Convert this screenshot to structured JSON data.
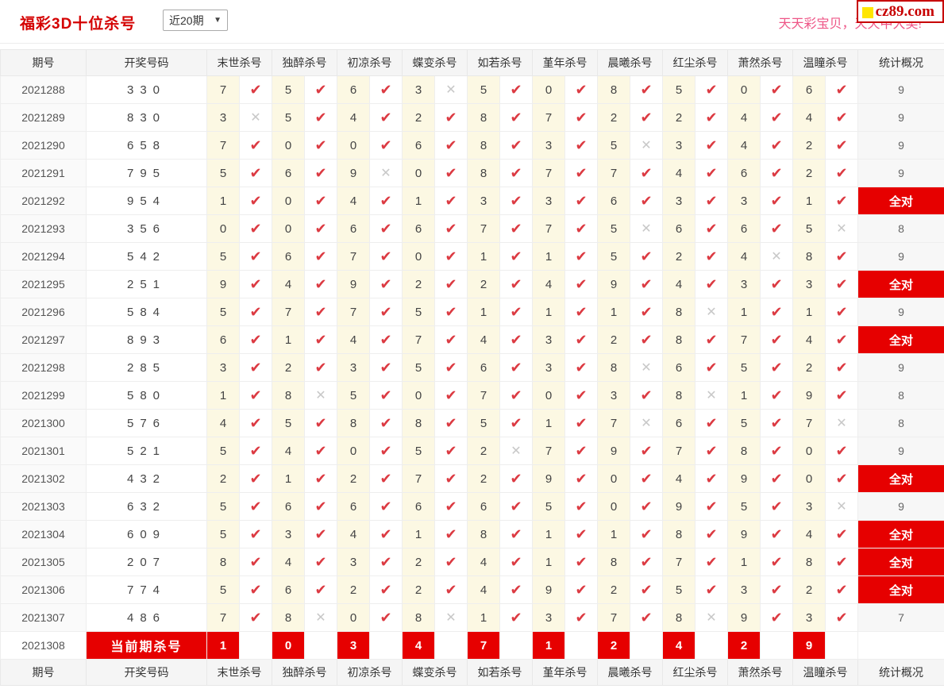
{
  "page": {
    "title": "福彩3D十位杀号",
    "period_select": {
      "value": "近20期",
      "arrow": "▼"
    },
    "slogan": "天天彩宝贝，天天中大奖!",
    "logo_text": "cz89.com"
  },
  "colors": {
    "title_red": "#d40000",
    "accent_red": "#e60000",
    "check_red": "#dc3a42",
    "cross_gray": "#c8c8c8",
    "slogan_pink": "#ee5586",
    "logo_red": "#c70000",
    "logo_yellow": "#ffe600",
    "kill_cell_yellow": "#fcf8e3"
  },
  "table": {
    "headers": {
      "period": "期号",
      "draw": "开奖号码",
      "killers": [
        "末世杀号",
        "独醉杀号",
        "初凉杀号",
        "蝶变杀号",
        "如若杀号",
        "堇年杀号",
        "晨曦杀号",
        "红尘杀号",
        "萧然杀号",
        "温瞳杀号"
      ],
      "stats": "统计概况"
    },
    "all_correct_label": "全对",
    "rows": [
      {
        "period": "2021288",
        "draw": "330",
        "kills": [
          [
            "7",
            1
          ],
          [
            "5",
            1
          ],
          [
            "6",
            1
          ],
          [
            "3",
            0
          ],
          [
            "5",
            1
          ],
          [
            "0",
            1
          ],
          [
            "8",
            1
          ],
          [
            "5",
            1
          ],
          [
            "0",
            1
          ],
          [
            "6",
            1
          ]
        ],
        "stat": "9"
      },
      {
        "period": "2021289",
        "draw": "830",
        "kills": [
          [
            "3",
            0
          ],
          [
            "5",
            1
          ],
          [
            "4",
            1
          ],
          [
            "2",
            1
          ],
          [
            "8",
            1
          ],
          [
            "7",
            1
          ],
          [
            "2",
            1
          ],
          [
            "2",
            1
          ],
          [
            "4",
            1
          ],
          [
            "4",
            1
          ]
        ],
        "stat": "9"
      },
      {
        "period": "2021290",
        "draw": "658",
        "kills": [
          [
            "7",
            1
          ],
          [
            "0",
            1
          ],
          [
            "0",
            1
          ],
          [
            "6",
            1
          ],
          [
            "8",
            1
          ],
          [
            "3",
            1
          ],
          [
            "5",
            0
          ],
          [
            "3",
            1
          ],
          [
            "4",
            1
          ],
          [
            "2",
            1
          ]
        ],
        "stat": "9"
      },
      {
        "period": "2021291",
        "draw": "795",
        "kills": [
          [
            "5",
            1
          ],
          [
            "6",
            1
          ],
          [
            "9",
            0
          ],
          [
            "0",
            1
          ],
          [
            "8",
            1
          ],
          [
            "7",
            1
          ],
          [
            "7",
            1
          ],
          [
            "4",
            1
          ],
          [
            "6",
            1
          ],
          [
            "2",
            1
          ]
        ],
        "stat": "9"
      },
      {
        "period": "2021292",
        "draw": "954",
        "kills": [
          [
            "1",
            1
          ],
          [
            "0",
            1
          ],
          [
            "4",
            1
          ],
          [
            "1",
            1
          ],
          [
            "3",
            1
          ],
          [
            "3",
            1
          ],
          [
            "6",
            1
          ],
          [
            "3",
            1
          ],
          [
            "3",
            1
          ],
          [
            "1",
            1
          ]
        ],
        "stat": "全对"
      },
      {
        "period": "2021293",
        "draw": "356",
        "kills": [
          [
            "0",
            1
          ],
          [
            "0",
            1
          ],
          [
            "6",
            1
          ],
          [
            "6",
            1
          ],
          [
            "7",
            1
          ],
          [
            "7",
            1
          ],
          [
            "5",
            0
          ],
          [
            "6",
            1
          ],
          [
            "6",
            1
          ],
          [
            "5",
            0
          ]
        ],
        "stat": "8"
      },
      {
        "period": "2021294",
        "draw": "542",
        "kills": [
          [
            "5",
            1
          ],
          [
            "6",
            1
          ],
          [
            "7",
            1
          ],
          [
            "0",
            1
          ],
          [
            "1",
            1
          ],
          [
            "1",
            1
          ],
          [
            "5",
            1
          ],
          [
            "2",
            1
          ],
          [
            "4",
            0
          ],
          [
            "8",
            1
          ]
        ],
        "stat": "9"
      },
      {
        "period": "2021295",
        "draw": "251",
        "kills": [
          [
            "9",
            1
          ],
          [
            "4",
            1
          ],
          [
            "9",
            1
          ],
          [
            "2",
            1
          ],
          [
            "2",
            1
          ],
          [
            "4",
            1
          ],
          [
            "9",
            1
          ],
          [
            "4",
            1
          ],
          [
            "3",
            1
          ],
          [
            "3",
            1
          ]
        ],
        "stat": "全对"
      },
      {
        "period": "2021296",
        "draw": "584",
        "kills": [
          [
            "5",
            1
          ],
          [
            "7",
            1
          ],
          [
            "7",
            1
          ],
          [
            "5",
            1
          ],
          [
            "1",
            1
          ],
          [
            "1",
            1
          ],
          [
            "1",
            1
          ],
          [
            "8",
            0
          ],
          [
            "1",
            1
          ],
          [
            "1",
            1
          ]
        ],
        "stat": "9"
      },
      {
        "period": "2021297",
        "draw": "893",
        "kills": [
          [
            "6",
            1
          ],
          [
            "1",
            1
          ],
          [
            "4",
            1
          ],
          [
            "7",
            1
          ],
          [
            "4",
            1
          ],
          [
            "3",
            1
          ],
          [
            "2",
            1
          ],
          [
            "8",
            1
          ],
          [
            "7",
            1
          ],
          [
            "4",
            1
          ]
        ],
        "stat": "全对"
      },
      {
        "period": "2021298",
        "draw": "285",
        "kills": [
          [
            "3",
            1
          ],
          [
            "2",
            1
          ],
          [
            "3",
            1
          ],
          [
            "5",
            1
          ],
          [
            "6",
            1
          ],
          [
            "3",
            1
          ],
          [
            "8",
            0
          ],
          [
            "6",
            1
          ],
          [
            "5",
            1
          ],
          [
            "2",
            1
          ]
        ],
        "stat": "9"
      },
      {
        "period": "2021299",
        "draw": "580",
        "kills": [
          [
            "1",
            1
          ],
          [
            "8",
            0
          ],
          [
            "5",
            1
          ],
          [
            "0",
            1
          ],
          [
            "7",
            1
          ],
          [
            "0",
            1
          ],
          [
            "3",
            1
          ],
          [
            "8",
            0
          ],
          [
            "1",
            1
          ],
          [
            "9",
            1
          ]
        ],
        "stat": "8"
      },
      {
        "period": "2021300",
        "draw": "576",
        "kills": [
          [
            "4",
            1
          ],
          [
            "5",
            1
          ],
          [
            "8",
            1
          ],
          [
            "8",
            1
          ],
          [
            "5",
            1
          ],
          [
            "1",
            1
          ],
          [
            "7",
            0
          ],
          [
            "6",
            1
          ],
          [
            "5",
            1
          ],
          [
            "7",
            0
          ]
        ],
        "stat": "8"
      },
      {
        "period": "2021301",
        "draw": "521",
        "kills": [
          [
            "5",
            1
          ],
          [
            "4",
            1
          ],
          [
            "0",
            1
          ],
          [
            "5",
            1
          ],
          [
            "2",
            0
          ],
          [
            "7",
            1
          ],
          [
            "9",
            1
          ],
          [
            "7",
            1
          ],
          [
            "8",
            1
          ],
          [
            "0",
            1
          ]
        ],
        "stat": "9"
      },
      {
        "period": "2021302",
        "draw": "432",
        "kills": [
          [
            "2",
            1
          ],
          [
            "1",
            1
          ],
          [
            "2",
            1
          ],
          [
            "7",
            1
          ],
          [
            "2",
            1
          ],
          [
            "9",
            1
          ],
          [
            "0",
            1
          ],
          [
            "4",
            1
          ],
          [
            "9",
            1
          ],
          [
            "0",
            1
          ]
        ],
        "stat": "全对"
      },
      {
        "period": "2021303",
        "draw": "632",
        "kills": [
          [
            "5",
            1
          ],
          [
            "6",
            1
          ],
          [
            "6",
            1
          ],
          [
            "6",
            1
          ],
          [
            "6",
            1
          ],
          [
            "5",
            1
          ],
          [
            "0",
            1
          ],
          [
            "9",
            1
          ],
          [
            "5",
            1
          ],
          [
            "3",
            0
          ]
        ],
        "stat": "9"
      },
      {
        "period": "2021304",
        "draw": "609",
        "kills": [
          [
            "5",
            1
          ],
          [
            "3",
            1
          ],
          [
            "4",
            1
          ],
          [
            "1",
            1
          ],
          [
            "8",
            1
          ],
          [
            "1",
            1
          ],
          [
            "1",
            1
          ],
          [
            "8",
            1
          ],
          [
            "9",
            1
          ],
          [
            "4",
            1
          ]
        ],
        "stat": "全对"
      },
      {
        "period": "2021305",
        "draw": "207",
        "kills": [
          [
            "8",
            1
          ],
          [
            "4",
            1
          ],
          [
            "3",
            1
          ],
          [
            "2",
            1
          ],
          [
            "4",
            1
          ],
          [
            "1",
            1
          ],
          [
            "8",
            1
          ],
          [
            "7",
            1
          ],
          [
            "1",
            1
          ],
          [
            "8",
            1
          ]
        ],
        "stat": "全对"
      },
      {
        "period": "2021306",
        "draw": "774",
        "kills": [
          [
            "5",
            1
          ],
          [
            "6",
            1
          ],
          [
            "2",
            1
          ],
          [
            "2",
            1
          ],
          [
            "4",
            1
          ],
          [
            "9",
            1
          ],
          [
            "2",
            1
          ],
          [
            "5",
            1
          ],
          [
            "3",
            1
          ],
          [
            "2",
            1
          ]
        ],
        "stat": "全对"
      },
      {
        "period": "2021307",
        "draw": "486",
        "kills": [
          [
            "7",
            1
          ],
          [
            "8",
            0
          ],
          [
            "0",
            1
          ],
          [
            "8",
            0
          ],
          [
            "1",
            1
          ],
          [
            "3",
            1
          ],
          [
            "7",
            1
          ],
          [
            "8",
            0
          ],
          [
            "9",
            1
          ],
          [
            "3",
            1
          ]
        ],
        "stat": "7"
      }
    ],
    "current_row": {
      "period": "2021308",
      "label": "当前期杀号",
      "kills": [
        "1",
        "0",
        "3",
        "4",
        "7",
        "1",
        "2",
        "4",
        "2",
        "9"
      ],
      "stat": ""
    }
  }
}
